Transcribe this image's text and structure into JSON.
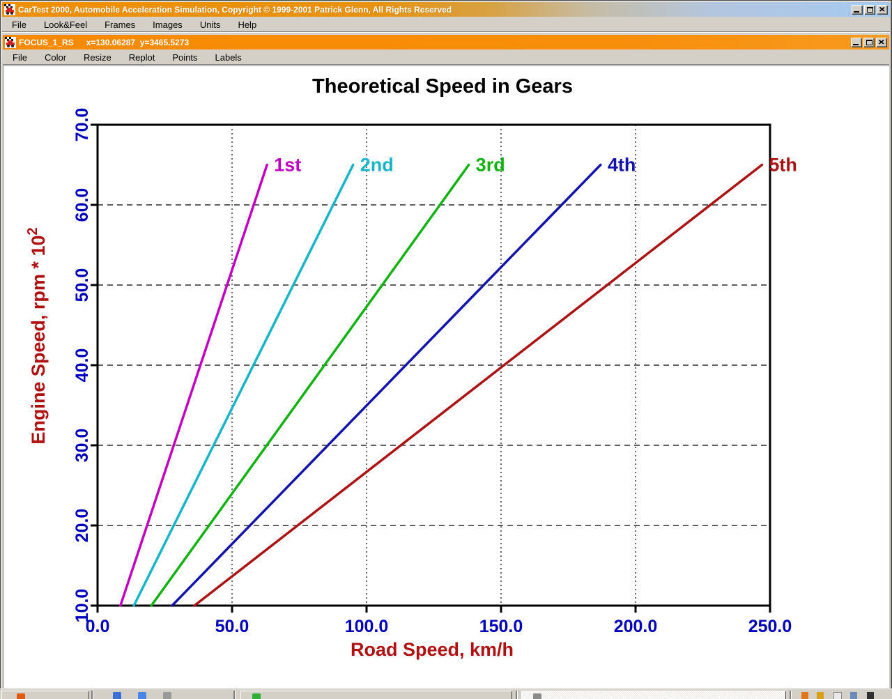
{
  "app_window": {
    "title": "CarTest 2000, Automobile Acceleration Simulation, Copyright © 1999-2001 Patrick Glenn, All Rights Reserved",
    "menu_items": [
      "File",
      "Look&Feel",
      "Frames",
      "Images",
      "Units",
      "Help"
    ],
    "controls": [
      "minimize-icon",
      "maximize-icon",
      "close-icon"
    ],
    "icon": "car-icon",
    "titlebar_gradient": [
      "#ee9005",
      "#a8c8ec"
    ]
  },
  "plot_window": {
    "title": "FOCUS_1_RS",
    "cursor_readout": "x=130.06287  y=3465.5273",
    "menu_items": [
      "File",
      "Color",
      "Resize",
      "Replot",
      "Points",
      "Labels"
    ],
    "controls": [
      "minimize-icon",
      "maximize-icon",
      "close-icon"
    ],
    "icon": "car-icon",
    "titlebar_color": "#f88a02"
  },
  "chart_data": {
    "type": "line",
    "title": "Theoretical Speed in Gears",
    "xlabel": "Road Speed, km/h",
    "ylabel_base": "Engine Speed, rpm * 10",
    "ylabel_exponent": "2",
    "xlim": [
      0,
      250
    ],
    "ylim": [
      10,
      70
    ],
    "xticks": {
      "values": [
        0,
        50,
        100,
        150,
        200,
        250
      ],
      "labels": [
        "0.0",
        "50.0",
        "100.0",
        "150.0",
        "200.0",
        "250.0"
      ]
    },
    "yticks": {
      "values": [
        10,
        20,
        30,
        40,
        50,
        60,
        70
      ],
      "labels": [
        "10.0",
        "20.0",
        "30.0",
        "40.0",
        "50.0",
        "60.0",
        "70.0"
      ]
    },
    "grid": {
      "vertical_dotted_x": [
        50,
        100,
        150,
        200
      ],
      "horizontal_dashed_y": [
        20,
        30,
        40,
        50,
        60
      ]
    },
    "title_color": "#000000",
    "axis_title_color": "#b01010",
    "tick_label_color": "#0000bb",
    "axis_color": "#000000",
    "series": [
      {
        "name": "1st",
        "color": "#bf00bf",
        "points": [
          [
            8.5,
            10
          ],
          [
            63,
            65
          ]
        ]
      },
      {
        "name": "2nd",
        "color": "#1ab4c8",
        "points": [
          [
            13.5,
            10
          ],
          [
            95,
            65
          ]
        ]
      },
      {
        "name": "3rd",
        "color": "#12b212",
        "points": [
          [
            20,
            10
          ],
          [
            138,
            65
          ]
        ]
      },
      {
        "name": "4th",
        "color": "#1414aa",
        "points": [
          [
            27.7,
            10
          ],
          [
            187,
            65
          ]
        ]
      },
      {
        "name": "5th",
        "color": "#aa1414",
        "points": [
          [
            36,
            10
          ],
          [
            247,
            65
          ]
        ]
      }
    ]
  },
  "taskbar": {
    "regions": [
      "start-button",
      "quick-launch",
      "task-buttons",
      "system-tray"
    ]
  }
}
